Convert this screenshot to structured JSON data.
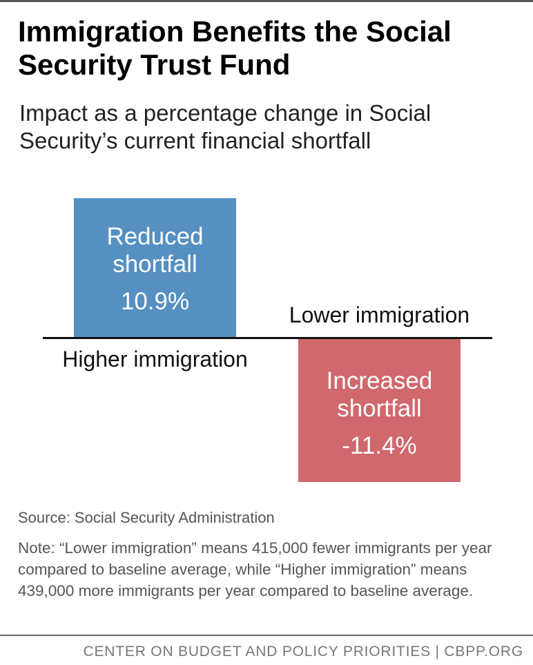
{
  "chart_data": {
    "type": "bar",
    "title": "Immigration Benefits the Social Security Trust Fund",
    "subtitle": "Impact as a percentage change in Social Security’s current financial shortfall",
    "categories": [
      "Higher immigration",
      "Lower immigration"
    ],
    "values": [
      10.9,
      -11.4
    ],
    "value_labels": [
      "10.9%",
      "-11.4%"
    ],
    "bar_labels": [
      "Reduced shortfall",
      "Increased shortfall"
    ],
    "colors": [
      "#5590c1",
      "#d0686d"
    ],
    "source": "Source: Social Security Administration",
    "note": "Note: “Lower immigration” means 415,000 fewer immigrants per year compared to baseline average, while “Higher immigration” means 439,000 more immigrants per year compared to baseline average.",
    "footer": "CENTER ON BUDGET AND POLICY PRIORITIES | CBPP.ORG"
  }
}
